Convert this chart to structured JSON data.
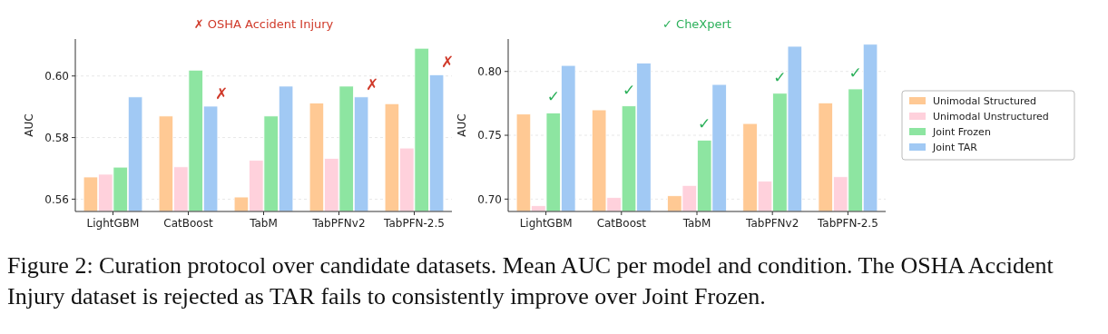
{
  "chart_data": [
    {
      "type": "bar",
      "title": "✗ OSHA Accident Injury",
      "ylabel": "AUC",
      "categories": [
        "LightGBM",
        "CatBoost",
        "TabM",
        "TabPFNv2",
        "TabPFN-2.5"
      ],
      "series": [
        {
          "color": "#ffc994",
          "values": [
            0.5672,
            0.587,
            0.5607,
            0.5912,
            0.591
          ]
        },
        {
          "color": "#ffd1dc",
          "values": [
            0.5681,
            0.5705,
            0.5726,
            0.5732,
            0.5766
          ]
        },
        {
          "color": "#8de5a1",
          "values": [
            0.5704,
            0.6019,
            0.587,
            0.5967,
            0.609
          ]
        },
        {
          "color": "#a1c9f4",
          "values": [
            0.5932,
            0.5902,
            0.5967,
            0.5932,
            0.6004
          ]
        }
      ],
      "ylim": [
        0.556,
        0.612
      ],
      "yticks": [
        {
          "value": 0.56,
          "label": "0.56"
        },
        {
          "value": 0.58,
          "label": "0.58"
        },
        {
          "value": 0.6,
          "label": "0.60"
        }
      ],
      "grid": "y",
      "annotations": [
        {
          "text": "✗",
          "x": "CatBoost",
          "y": 0.5902
        },
        {
          "text": "✗",
          "x": "TabPFNv2",
          "y": 0.5932
        },
        {
          "text": "✗",
          "x": "TabPFN-2.5",
          "y": 0.6004
        }
      ]
    },
    {
      "type": "bar",
      "title": "✓ CheXpert",
      "ylabel": "AUC",
      "categories": [
        "LightGBM",
        "CatBoost",
        "TabM",
        "TabPFNv2",
        "TabPFN-2.5"
      ],
      "series": [
        {
          "name": "Unimodal Structured",
          "color": "#ffc994",
          "values": [
            0.7666,
            0.7699,
            0.7026,
            0.7592,
            0.7754
          ]
        },
        {
          "name": "Unimodal Unstructured",
          "color": "#ffd1dc",
          "values": [
            0.6948,
            0.7012,
            0.7107,
            0.714,
            0.7175
          ]
        },
        {
          "name": "Joint Frozen",
          "color": "#8de5a1",
          "values": [
            0.7675,
            0.773,
            0.7462,
            0.7829,
            0.7863
          ]
        },
        {
          "name": "Joint TAR",
          "color": "#a1c9f4",
          "values": [
            0.8047,
            0.8066,
            0.7898,
            0.8197,
            0.8213
          ]
        }
      ],
      "ylim": [
        0.6903,
        0.8254
      ],
      "yticks": [
        {
          "value": 0.7,
          "label": "0.70"
        },
        {
          "value": 0.75,
          "label": "0.75"
        },
        {
          "value": 0.8,
          "label": "0.80"
        }
      ],
      "grid": "y",
      "legend": "right",
      "annotations": [
        {
          "text": "✓",
          "x": "LightGBM",
          "y": 0.7675
        },
        {
          "text": "✓",
          "x": "CatBoost",
          "y": 0.773
        },
        {
          "text": "✓",
          "x": "TabM",
          "y": 0.7462
        },
        {
          "text": "✓",
          "x": "TabPFNv2",
          "y": 0.7829
        },
        {
          "text": "✓",
          "x": "TabPFN-2.5",
          "y": 0.7863
        },
        "Figure 2: Curation protocol over candidate datasets. Mean AUC per model and condition. The OSHA Accident Injury dataset is rejected as TAR fails to consistently improve over Joint Frozen."
      ]
    }
  ]
}
